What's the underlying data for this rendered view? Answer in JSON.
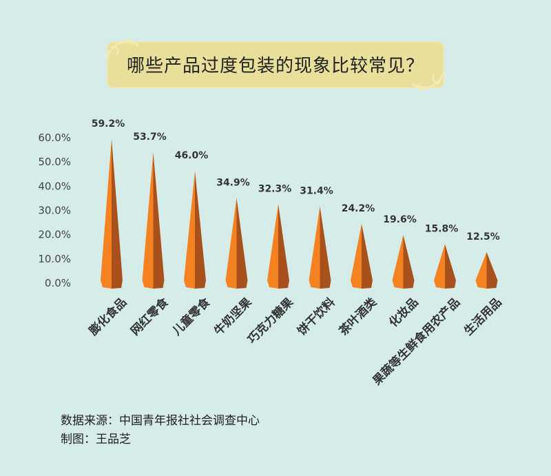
{
  "title": "哪些产品过度包装的现象比较常见？",
  "chart_data": {
    "type": "bar",
    "title": "哪些产品过度包装的现象比较常见？",
    "categories": [
      "膨化食品",
      "网红零食",
      "儿童零食",
      "牛奶坚果",
      "巧克力糖果",
      "饼干饮料",
      "茶叶酒类",
      "化妆品",
      "果蔬等生鲜食用农产品",
      "生活用品"
    ],
    "series": [
      {
        "values": [
          59.2,
          53.7,
          46.0,
          34.9,
          32.3,
          31.4,
          24.2,
          19.6,
          15.8,
          12.5
        ]
      }
    ],
    "value_labels": [
      "59.2%",
      "53.7%",
      "46.0%",
      "34.9%",
      "32.3%",
      "31.4%",
      "24.2%",
      "19.6%",
      "15.8%",
      "12.5%"
    ],
    "y_ticks": [
      "0.0%",
      "10.0%",
      "20.0%",
      "30.0%",
      "40.0%",
      "50.0%",
      "60.0%"
    ],
    "ylim": [
      0,
      60
    ],
    "xlabel": "",
    "ylabel": "",
    "grid": false,
    "legend": "none",
    "colors": {
      "bar_light": "#f58220",
      "bar_dark": "#a9511c",
      "value_label": "#333333",
      "axis_text": "#444444"
    }
  },
  "footer": {
    "source": "数据来源：中国青年报社社会调查中心",
    "author": "制图：王品芝"
  }
}
